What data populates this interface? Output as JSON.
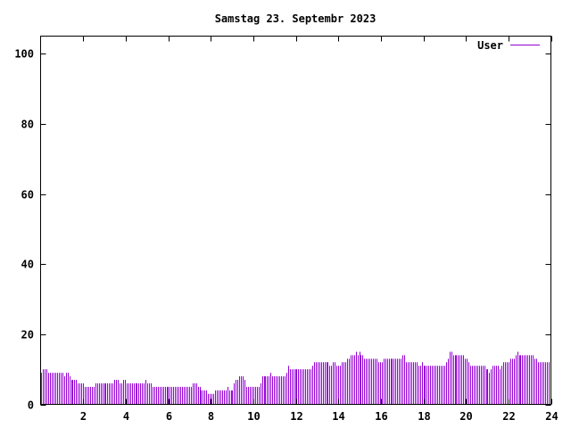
{
  "chart_data": {
    "type": "bar",
    "title": "Samstag 23. Septembr 2023",
    "xlabel": "",
    "ylabel": "",
    "xlim": [
      0,
      24
    ],
    "ylim": [
      0,
      105
    ],
    "x_ticks": [
      2,
      4,
      6,
      8,
      10,
      12,
      14,
      16,
      18,
      20,
      22,
      24
    ],
    "y_ticks": [
      0,
      20,
      40,
      60,
      80,
      100
    ],
    "grid": false,
    "legend_position": "top-right",
    "bar_color": "#9400d3",
    "series": [
      {
        "name": "User",
        "sample_interval_hours": 0.0833,
        "values": [
          9,
          10,
          10,
          10,
          9,
          9,
          9,
          9,
          9,
          9,
          9,
          9,
          9,
          8,
          9,
          9,
          8,
          7,
          7,
          7,
          7,
          6,
          6,
          6,
          6,
          5,
          5,
          5,
          5,
          5,
          5,
          6,
          6,
          6,
          6,
          6,
          6,
          6,
          6,
          6,
          6,
          6,
          7,
          7,
          7,
          6,
          6,
          7,
          7,
          6,
          6,
          6,
          6,
          6,
          6,
          6,
          6,
          6,
          6,
          6,
          7,
          6,
          6,
          6,
          5,
          5,
          5,
          5,
          5,
          5,
          5,
          5,
          5,
          5,
          5,
          5,
          5,
          5,
          5,
          5,
          5,
          5,
          5,
          5,
          5,
          5,
          5,
          6,
          6,
          6,
          5,
          5,
          4,
          4,
          4,
          4,
          3,
          3,
          3,
          3,
          4,
          4,
          4,
          4,
          4,
          4,
          4,
          5,
          4,
          4,
          4,
          6,
          7,
          7,
          8,
          8,
          8,
          7,
          5,
          5,
          5,
          5,
          5,
          5,
          5,
          5,
          6,
          8,
          8,
          8,
          8,
          8,
          9,
          8,
          8,
          8,
          8,
          8,
          8,
          8,
          8,
          9,
          11,
          10,
          10,
          10,
          10,
          10,
          10,
          10,
          10,
          10,
          10,
          10,
          10,
          10,
          11,
          12,
          12,
          12,
          12,
          12,
          12,
          12,
          12,
          12,
          11,
          11,
          12,
          12,
          11,
          11,
          11,
          12,
          12,
          12,
          13,
          13,
          14,
          14,
          14,
          15,
          14,
          15,
          14,
          14,
          13,
          13,
          13,
          13,
          13,
          13,
          13,
          13,
          12,
          12,
          12,
          13,
          13,
          13,
          13,
          13,
          13,
          13,
          13,
          13,
          13,
          13,
          14,
          14,
          12,
          12,
          12,
          12,
          12,
          12,
          12,
          11,
          11,
          12,
          11,
          11,
          11,
          11,
          11,
          11,
          11,
          11,
          11,
          11,
          11,
          11,
          11,
          12,
          13,
          15,
          15,
          14,
          14,
          14,
          14,
          14,
          14,
          14,
          13,
          13,
          12,
          11,
          11,
          11,
          11,
          11,
          11,
          11,
          11,
          11,
          10,
          10,
          9,
          10,
          11,
          11,
          11,
          11,
          10,
          11,
          12,
          12,
          12,
          12,
          13,
          13,
          13,
          14,
          15,
          14,
          14,
          14,
          14,
          14,
          14,
          14,
          14,
          14,
          13,
          13,
          12,
          12,
          12,
          12,
          12,
          12,
          12,
          13
        ]
      }
    ]
  }
}
